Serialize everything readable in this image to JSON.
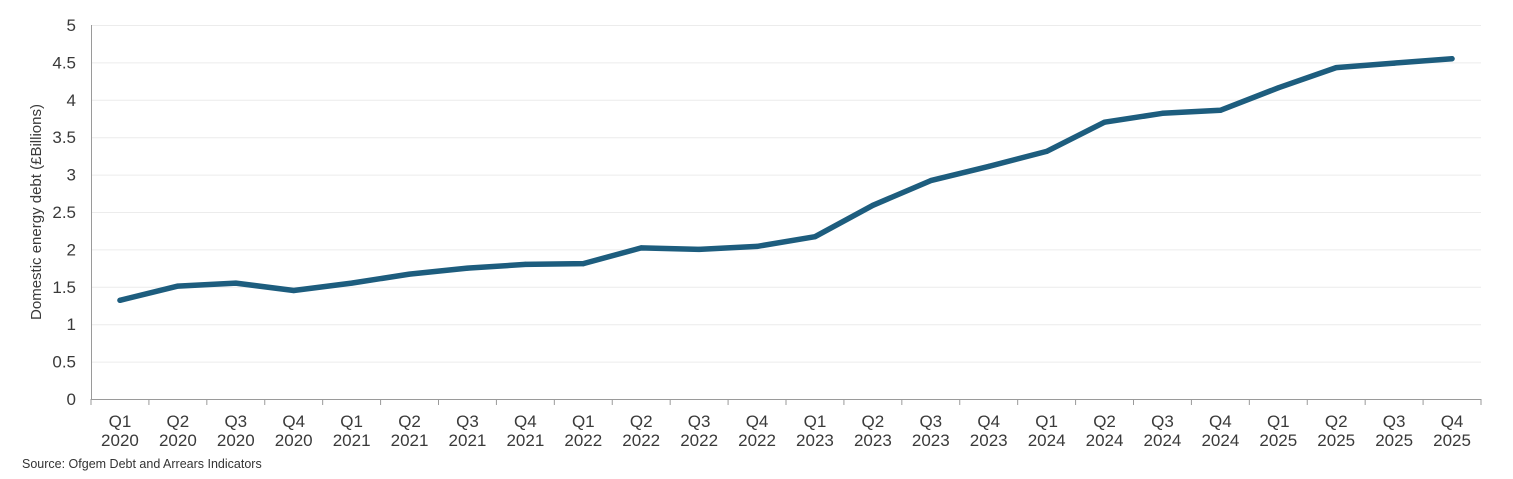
{
  "chart_data": {
    "type": "line",
    "title": "",
    "xlabel": "",
    "ylabel": "Domestic energy debt (£Billions)",
    "ylim": [
      0,
      5
    ],
    "yticks": [
      "0",
      "0.5",
      "1",
      "1.5",
      "2",
      "2.5",
      "3",
      "3.5",
      "4",
      "4.5",
      "5"
    ],
    "grid": true,
    "legend": "none",
    "categories": [
      [
        "Q1",
        "2020"
      ],
      [
        "Q2",
        "2020"
      ],
      [
        "Q3",
        "2020"
      ],
      [
        "Q4",
        "2020"
      ],
      [
        "Q1",
        "2021"
      ],
      [
        "Q2",
        "2021"
      ],
      [
        "Q3",
        "2021"
      ],
      [
        "Q4",
        "2021"
      ],
      [
        "Q1",
        "2022"
      ],
      [
        "Q2",
        "2022"
      ],
      [
        "Q3",
        "2022"
      ],
      [
        "Q4",
        "2022"
      ],
      [
        "Q1",
        "2023"
      ],
      [
        "Q2",
        "2023"
      ],
      [
        "Q3",
        "2023"
      ],
      [
        "Q4",
        "2023"
      ],
      [
        "Q1",
        "2024"
      ],
      [
        "Q2",
        "2024"
      ],
      [
        "Q3",
        "2024"
      ],
      [
        "Q4",
        "2024"
      ],
      [
        "Q1",
        "2025"
      ],
      [
        "Q2",
        "2025"
      ],
      [
        "Q3",
        "2025"
      ],
      [
        "Q4",
        "2025"
      ]
    ],
    "series": [
      {
        "values": [
          1.32,
          1.51,
          1.55,
          1.45,
          1.55,
          1.67,
          1.75,
          1.8,
          1.81,
          2.02,
          2.0,
          2.04,
          2.17,
          2.59,
          2.92,
          3.11,
          3.31,
          3.7,
          3.82,
          3.86,
          4.16,
          4.43,
          4.49,
          4.55
        ],
        "color": "#1d5d7e"
      }
    ]
  },
  "source": "Source: Ofgem Debt and Arrears Indicators"
}
